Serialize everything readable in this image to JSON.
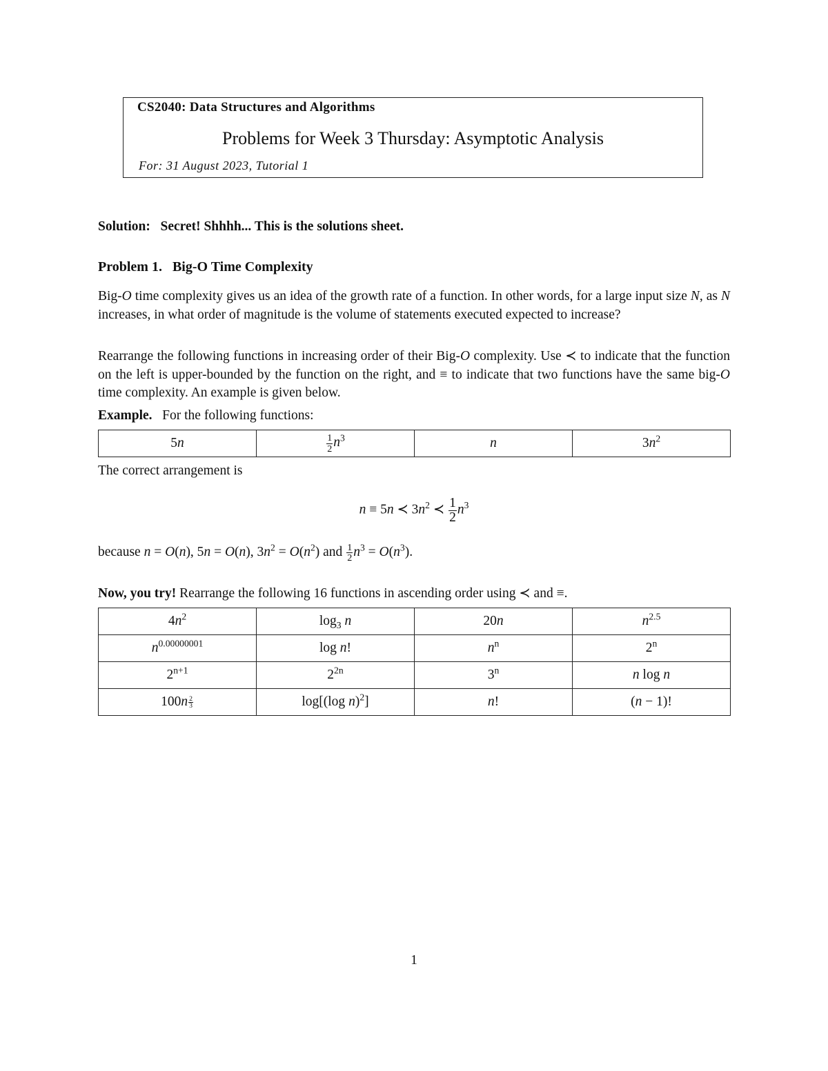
{
  "header": {
    "course": "CS2040: Data Structures and Algorithms",
    "title": "Problems for Week 3 Thursday: Asymptotic Analysis",
    "for_line": "For: 31 August 2023, Tutorial 1"
  },
  "solution": {
    "label": "Solution:",
    "text": "Secret! Shhhh... This is the solutions sheet."
  },
  "problem": {
    "label": "Problem 1.",
    "title": "Big-O Time Complexity"
  },
  "para1": [
    {
      "t": "Big-"
    },
    {
      "m": "O"
    },
    {
      "t": " time complexity gives us an idea of the growth rate of a function. In other words, for a large input size "
    },
    {
      "m": "N"
    },
    {
      "t": ", as "
    },
    {
      "m": "N"
    },
    {
      "t": " increases, in what order of magnitude is the volume of statements executed expected to increase?"
    }
  ],
  "para2": [
    {
      "t": "Rearrange the following functions in increasing order of their Big-"
    },
    {
      "m": "O"
    },
    {
      "t": " complexity. Use ≺ to indicate that the function on the left is upper-bounded by the function on the right, and ≡ to indicate that two functions have the same big-"
    },
    {
      "m": "O"
    },
    {
      "t": " time complexity. An example is given below."
    }
  ],
  "example": {
    "label": "Example.",
    "text": "For the following functions:"
  },
  "example_table": [
    [
      [
        {
          "t": "5"
        },
        {
          "m": "n"
        }
      ],
      [
        {
          "frac": [
            "1",
            "2"
          ]
        },
        {
          "m": "n"
        },
        {
          "sup": "3"
        }
      ],
      [
        {
          "m": "n"
        }
      ],
      [
        {
          "t": "3"
        },
        {
          "m": "n"
        },
        {
          "sup": "2"
        }
      ]
    ]
  ],
  "arrangement_intro": "The correct arrangement is",
  "arrangement": [
    {
      "m": "n"
    },
    {
      "t": " ≡ 5"
    },
    {
      "m": "n"
    },
    {
      "t": " ≺ 3"
    },
    {
      "m": "n"
    },
    {
      "sup": "2"
    },
    {
      "t": " ≺ "
    },
    {
      "dfrac": [
        "1",
        "2"
      ]
    },
    {
      "m": "n"
    },
    {
      "sup": "3"
    }
  ],
  "because": [
    {
      "t": "because "
    },
    {
      "m": "n"
    },
    {
      "t": " = "
    },
    {
      "m": "O"
    },
    {
      "t": "("
    },
    {
      "m": "n"
    },
    {
      "t": "), 5"
    },
    {
      "m": "n"
    },
    {
      "t": " = "
    },
    {
      "m": "O"
    },
    {
      "t": "("
    },
    {
      "m": "n"
    },
    {
      "t": "), 3"
    },
    {
      "m": "n"
    },
    {
      "sup": "2"
    },
    {
      "t": " = "
    },
    {
      "m": "O"
    },
    {
      "t": "("
    },
    {
      "m": "n"
    },
    {
      "sup": "2"
    },
    {
      "t": ") and "
    },
    {
      "frac": [
        "1",
        "2"
      ]
    },
    {
      "m": "n"
    },
    {
      "sup": "3"
    },
    {
      "t": " = "
    },
    {
      "m": "O"
    },
    {
      "t": "("
    },
    {
      "m": "n"
    },
    {
      "sup": "3"
    },
    {
      "t": ")."
    }
  ],
  "now": {
    "label": "Now, you try!",
    "text": "Rearrange the following 16 functions in ascending order using ≺ and ≡."
  },
  "problem_table": [
    [
      [
        {
          "t": "4"
        },
        {
          "m": "n"
        },
        {
          "sup": "2"
        }
      ],
      [
        {
          "t": "log"
        },
        {
          "sub": "3"
        },
        {
          "t": " "
        },
        {
          "m": "n"
        }
      ],
      [
        {
          "t": "20"
        },
        {
          "m": "n"
        }
      ],
      [
        {
          "m": "n"
        },
        {
          "sup": "2.5"
        }
      ]
    ],
    [
      [
        {
          "m": "n"
        },
        {
          "sup": "0.00000001"
        }
      ],
      [
        {
          "t": "log "
        },
        {
          "m": "n"
        },
        {
          "t": "!"
        }
      ],
      [
        {
          "m": "n"
        },
        {
          "sup": "n"
        }
      ],
      [
        {
          "t": "2"
        },
        {
          "sup": "n"
        }
      ]
    ],
    [
      [
        {
          "t": "2"
        },
        {
          "sup": "n+1"
        }
      ],
      [
        {
          "t": "2"
        },
        {
          "sup": "2n"
        }
      ],
      [
        {
          "t": "3"
        },
        {
          "sup": "n"
        }
      ],
      [
        {
          "m": "n"
        },
        {
          "t": " log "
        },
        {
          "m": "n"
        }
      ]
    ],
    [
      [
        {
          "t": "100"
        },
        {
          "m": "n"
        },
        {
          "supfrac": [
            "2",
            "3"
          ]
        }
      ],
      [
        {
          "t": "log[(log "
        },
        {
          "m": "n"
        },
        {
          "t": ")"
        },
        {
          "sup": "2"
        },
        {
          "t": "]"
        }
      ],
      [
        {
          "m": "n"
        },
        {
          "t": "!"
        }
      ],
      [
        {
          "t": "("
        },
        {
          "m": "n"
        },
        {
          "t": " − 1)!"
        }
      ]
    ]
  ],
  "page_number": "1"
}
